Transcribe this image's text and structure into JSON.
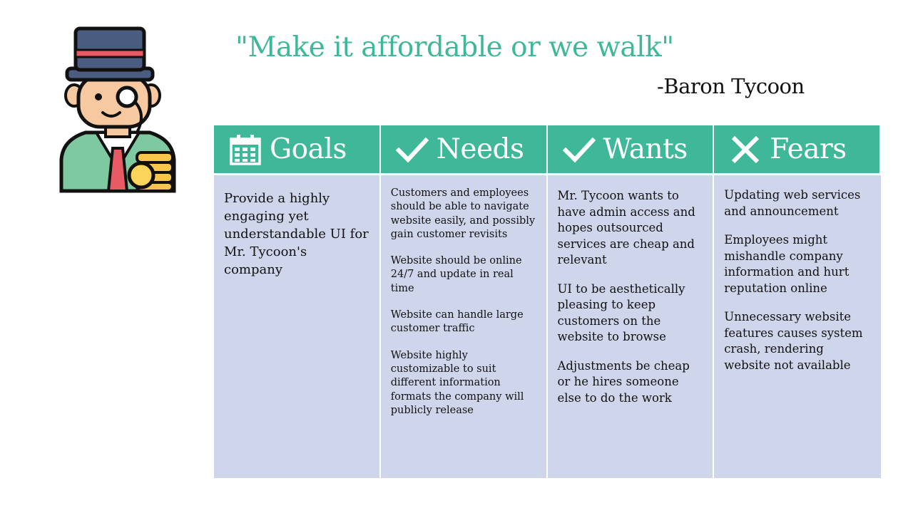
{
  "quote": "\"Make it affordable or we walk\"",
  "author": "-Baron Tycoon",
  "colors": {
    "accent": "#3fb899",
    "body_bg": "#cfd5ea",
    "text": "#111111"
  },
  "columns": [
    {
      "icon": "calendar-icon",
      "title": "Goals",
      "items": [
        "Provide a highly engaging yet understandable UI for Mr. Tycoon's company"
      ]
    },
    {
      "icon": "checkmark-icon",
      "title": "Needs",
      "items": [
        "Customers and employees should be able to navigate website easily, and possibly gain customer revisits",
        "Website should be online 24/7 and update in real time",
        "Website can handle large customer traffic",
        "Website highly customizable to suit different information formats the company will publicly release"
      ]
    },
    {
      "icon": "checkmark-icon",
      "title": "Wants",
      "items": [
        "Mr. Tycoon wants to have admin access and hopes outsourced services are cheap and relevant",
        "UI to be aesthetically pleasing to keep customers on the website to browse",
        "Adjustments be cheap or he hires someone else to do the work"
      ]
    },
    {
      "icon": "x-mark-icon",
      "title": "Fears",
      "items": [
        "Updating web services and announcement",
        "Employees might mishandle company information and hurt reputation online",
        "Unnecessary website features causes system crash, rendering website not available"
      ]
    }
  ]
}
